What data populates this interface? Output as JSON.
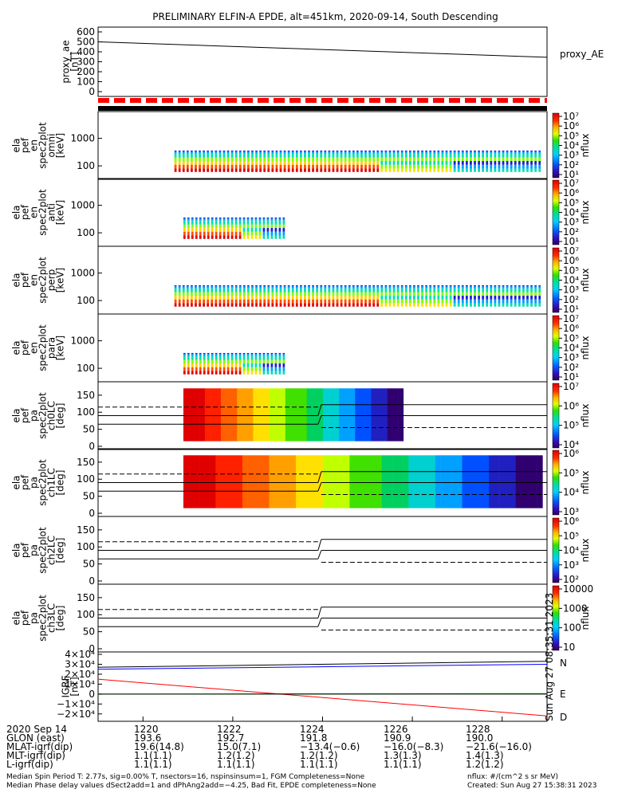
{
  "title": "PRELIMINARY ELFIN-A EPDE, alt=451km, 2020-09-14, South Descending",
  "chart_data": [
    {
      "type": "line",
      "panel": "proxy_ae",
      "ylabel": [
        "proxy_ae",
        "[nT]"
      ],
      "yticks": [
        "600",
        "500",
        "400",
        "300",
        "200",
        "100",
        "0"
      ],
      "ylim": [
        0,
        600
      ],
      "xlim": [
        1219.0,
        1229.0
      ],
      "series": [
        {
          "name": "proxy_AE",
          "x": [
            1219.0,
            1229.0
          ],
          "y": [
            500,
            345
          ]
        }
      ]
    },
    {
      "type": "heatmap",
      "panel": "ela pef en spec2plot omni",
      "ylabel": [
        "ela",
        "pef",
        "en",
        "spec2plot",
        "omni",
        "[keV]"
      ],
      "yticks": [
        "1000",
        "100"
      ],
      "yscale": "log",
      "colorbar": {
        "label": "nflux",
        "ticks": [
          "10⁷",
          "10⁶",
          "10⁵",
          "10⁴",
          "10³",
          "10²",
          "10¹"
        ]
      },
      "data_x_range": [
        1220.7,
        1228.9
      ]
    },
    {
      "type": "heatmap",
      "panel": "ela pef en spec2plot anti",
      "ylabel": [
        "ela",
        "pef",
        "en",
        "spec2plot",
        "anti",
        "[keV]"
      ],
      "yticks": [
        "1000",
        "100"
      ],
      "yscale": "log",
      "colorbar": {
        "label": "nflux",
        "ticks": [
          "10⁷",
          "10⁶",
          "10⁵",
          "10⁴",
          "10³",
          "10²",
          "10¹"
        ]
      },
      "data_x_range": [
        1220.9,
        1223.2
      ]
    },
    {
      "type": "heatmap",
      "panel": "ela pef en spec2plot perp",
      "ylabel": [
        "ela",
        "pef",
        "en",
        "spec2plot",
        "perp",
        "[keV]"
      ],
      "yticks": [
        "1000",
        "100"
      ],
      "yscale": "log",
      "colorbar": {
        "label": "nflux",
        "ticks": [
          "10⁷",
          "10⁶",
          "10⁵",
          "10⁴",
          "10³",
          "10²",
          "10¹"
        ]
      },
      "data_x_range": [
        1220.7,
        1228.9
      ]
    },
    {
      "type": "heatmap",
      "panel": "ela pef en spec2plot para",
      "ylabel": [
        "ela",
        "pef",
        "en",
        "spec2plot",
        "para",
        "[keV]"
      ],
      "yticks": [
        "1000",
        "100"
      ],
      "yscale": "log",
      "colorbar": {
        "label": "nflux",
        "ticks": [
          "10⁷",
          "10⁶",
          "10⁵",
          "10⁴",
          "10³",
          "10²",
          "10¹"
        ]
      },
      "data_x_range": [
        1220.9,
        1223.2
      ]
    },
    {
      "type": "heatmap",
      "panel": "ela pef pa spec2plot ch0LC",
      "ylabel": [
        "ela",
        "pef",
        "pa",
        "spec2plot",
        "ch0LC",
        "[deg]"
      ],
      "yticks": [
        "150",
        "100",
        "50",
        "0"
      ],
      "ylim": [
        0,
        180
      ],
      "colorbar": {
        "label": "nflux",
        "ticks": [
          "10⁷",
          "10⁶",
          "10⁵",
          "10⁴"
        ]
      },
      "data_x_range": [
        1220.9,
        1225.8
      ],
      "lc_switch_x": 1223.9,
      "lines": {
        "solid_before": [
          65,
          90
        ],
        "solid_after": [
          90,
          122
        ],
        "dashed_before": [
          115
        ],
        "dashed_after": [
          55
        ]
      }
    },
    {
      "type": "heatmap",
      "panel": "ela pef pa spec2plot ch1LC",
      "ylabel": [
        "ela",
        "pef",
        "pa",
        "spec2plot",
        "ch1LC",
        "[deg]"
      ],
      "yticks": [
        "150",
        "100",
        "50",
        "0"
      ],
      "ylim": [
        0,
        180
      ],
      "colorbar": {
        "label": "nflux",
        "ticks": [
          "10⁶",
          "10⁵",
          "10⁴",
          "10³"
        ]
      },
      "data_x_range": [
        1220.9,
        1228.9
      ],
      "lc_switch_x": 1223.9,
      "lines": {
        "solid_before": [
          65,
          90
        ],
        "solid_after": [
          90,
          122
        ],
        "dashed_before": [
          115
        ],
        "dashed_after": [
          55
        ]
      }
    },
    {
      "type": "heatmap",
      "panel": "ela pef pa spec2plot ch2LC",
      "ylabel": [
        "ela",
        "pef",
        "pa",
        "spec2plot",
        "ch2LC",
        "[deg]"
      ],
      "yticks": [
        "150",
        "100",
        "50",
        "0"
      ],
      "ylim": [
        0,
        180
      ],
      "colorbar": {
        "label": "nflux",
        "ticks": [
          "10⁶",
          "10⁵",
          "10⁴",
          "10³",
          "10²"
        ]
      },
      "lc_switch_x": 1223.9,
      "lines": {
        "solid_before": [
          65,
          90
        ],
        "solid_after": [
          90,
          122
        ],
        "dashed_before": [
          115
        ],
        "dashed_after": [
          55
        ]
      }
    },
    {
      "type": "heatmap",
      "panel": "ela pef pa spec2plot ch3LC",
      "ylabel": [
        "ela",
        "pef",
        "pa",
        "spec2plot",
        "ch3LC",
        "[deg]"
      ],
      "yticks": [
        "150",
        "100",
        "50",
        "0"
      ],
      "ylim": [
        0,
        180
      ],
      "colorbar": {
        "label": "nflux",
        "ticks": [
          "10000",
          "1000",
          "100",
          "10"
        ]
      },
      "lc_switch_x": 1223.9,
      "lines": {
        "solid_before": [
          65,
          90
        ],
        "solid_after": [
          90,
          122
        ],
        "dashed_before": [
          115
        ],
        "dashed_after": [
          55
        ]
      }
    },
    {
      "type": "line",
      "panel": "IGRF",
      "ylabel": [
        "IGRF",
        "[nT]"
      ],
      "yticks": [
        "4×10⁴",
        "3×10⁴",
        "2×10⁴",
        "1×10⁴",
        "0",
        "−1×10⁴",
        "−2×10⁴"
      ],
      "ylim": [
        -25000,
        40000
      ],
      "xlim": [
        1219.0,
        1229.0
      ],
      "series": [
        {
          "name": "N",
          "color": "#0000ff",
          "x": [
            1219.0,
            1229.0
          ],
          "y": [
            25000,
            30000
          ]
        },
        {
          "name": "E",
          "color": "#00cc00",
          "x": [
            1219.0,
            1229.0
          ],
          "y": [
            0,
            500
          ]
        },
        {
          "name": "D",
          "color": "#ff0000",
          "x": [
            1219.0,
            1229.0
          ],
          "y": [
            15000,
            -22000
          ]
        },
        {
          "name": "total",
          "color": "#000000",
          "x": [
            1219.0,
            1229.0
          ],
          "y": [
            27000,
            33000
          ]
        }
      ],
      "vertical_note": "Sun Aug 27 08:35:31 2023"
    }
  ],
  "colors": {
    "fgm_bar": "#ff0000",
    "axis": "#000000"
  },
  "annotations": {
    "proxy_ae_label": "proxy_AE",
    "igrf_n": "N",
    "igrf_e": "E",
    "igrf_d": "D",
    "igrf_side_note": "Sun Aug 27 08:35:31 2023"
  },
  "footer": {
    "rows": [
      {
        "label": "2020 Sep 14",
        "values": [
          "1220",
          "1222",
          "1224",
          "1226",
          "1228"
        ]
      },
      {
        "label": "GLON (east)",
        "values": [
          "193.6",
          "192.7",
          "191.8",
          "190.9",
          "190.0"
        ]
      },
      {
        "label": "MLAT-igrf(dip)",
        "values": [
          "19.6(14.8)",
          "15.0(7.1)",
          "−13.4(−0.6)",
          "−16.0(−8.3)",
          "−21.6(−16.0)"
        ]
      },
      {
        "label": "MLT-igrf(dip)",
        "values": [
          "1.1(1.1)",
          "1.2(1.2)",
          "1.2(1.2)",
          "1.3(1.3)",
          "1.4(1.3)"
        ]
      },
      {
        "label": "L-igrf(dip)",
        "values": [
          "1.1(1.1)",
          "1.1(1.1)",
          "1.1(1.1)",
          "1.1(1.1)",
          "1.2(1.2)"
        ]
      }
    ],
    "note1": "Median Spin Period T: 2.77s, sig=0.00% T, nsectors=16, nspinsinsum=1, FGM Completeness=None",
    "note2": "Median Phase delay values dSect2add=1 and dPhAng2add=−4.25, Bad Fit, EPDE completeness=None",
    "note3": "nflux: #/(cm^2 s sr MeV)",
    "note4": "Created: Sun Aug 27 15:38:31 2023"
  }
}
